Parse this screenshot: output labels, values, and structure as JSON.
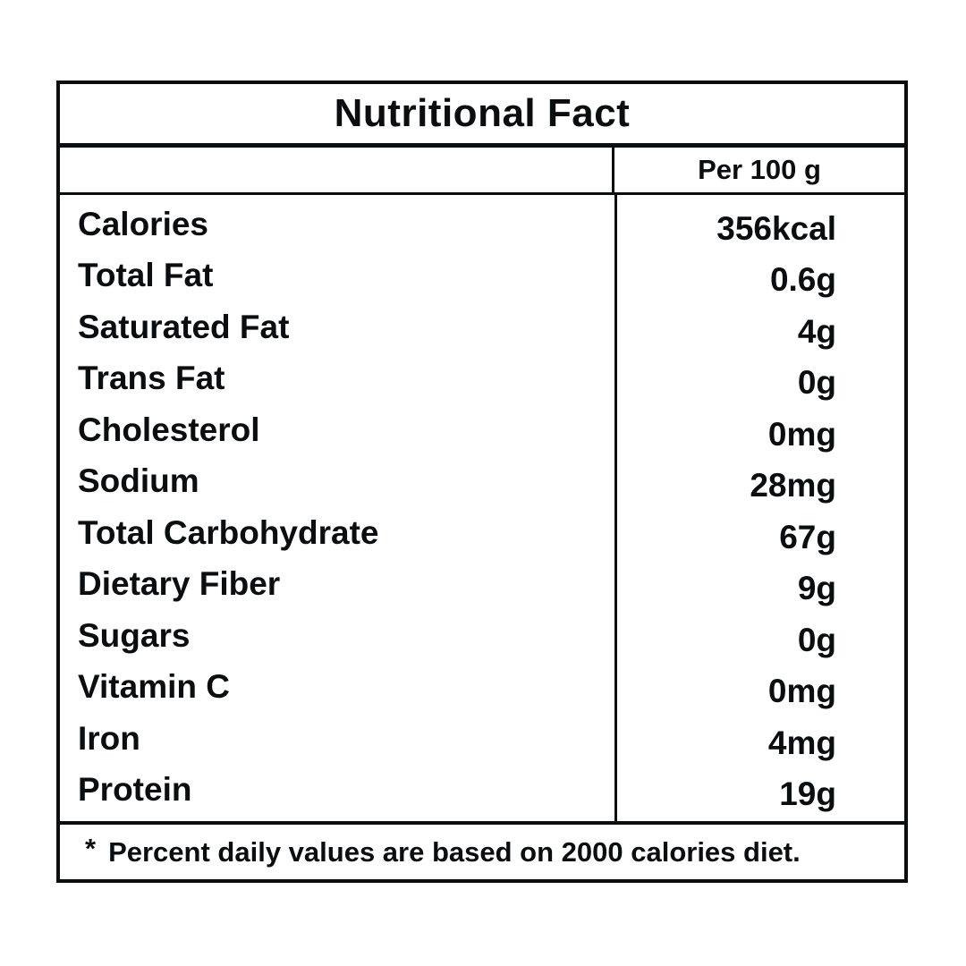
{
  "label": {
    "title": "Nutritional Fact",
    "column_header": "Per 100 g",
    "rows": [
      {
        "name": "Calories",
        "value": "356kcal"
      },
      {
        "name": "Total Fat",
        "value": "0.6g"
      },
      {
        "name": "Saturated Fat",
        "value": "4g"
      },
      {
        "name": "Trans Fat",
        "value": "0g"
      },
      {
        "name": "Cholesterol",
        "value": "0mg"
      },
      {
        "name": "Sodium",
        "value": "28mg"
      },
      {
        "name": "Total Carbohydrate",
        "value": "67g"
      },
      {
        "name": "Dietary Fiber",
        "value": "9g"
      },
      {
        "name": "Sugars",
        "value": "0g"
      },
      {
        "name": "Vitamin C",
        "value": "0mg"
      },
      {
        "name": "Iron",
        "value": "4mg"
      },
      {
        "name": "Protein",
        "value": "19g"
      }
    ],
    "footnote_marker": "*",
    "footnote_text": "Percent daily values are based on 2000 calories diet.",
    "colors": {
      "ink": "#0a0e10",
      "background": "#ffffff"
    }
  }
}
